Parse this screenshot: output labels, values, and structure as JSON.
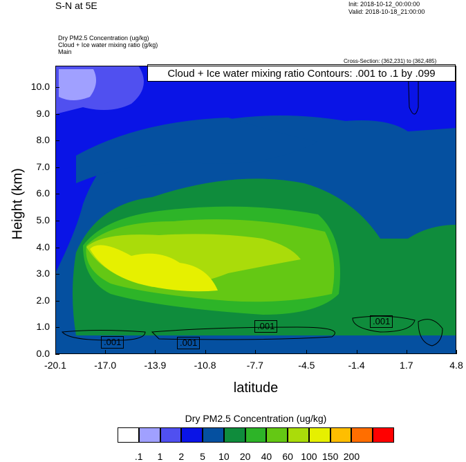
{
  "header": {
    "title": "S-N at 5E",
    "init": "Init: 2018-10-12_00:00:00",
    "valid": "Valid: 2018-10-18_21:00:00",
    "subtitle1": "Dry PM2.5 Concentration   (ug/kg)",
    "subtitle2": "Cloud + Ice water mixing ratio   (g/kg)",
    "subtitle3": "Main",
    "cross_section": "Cross-Section: (362,231) to (362,485)",
    "contour_info": "Cloud + Ice water mixing ratio Contours: .001 to .1 by .099"
  },
  "colors": {
    "levels": [
      "#ffffff",
      "#a0a0ff",
      "#5050f0",
      "#0a14e6",
      "#0550a0",
      "#0f8c3c",
      "#2db428",
      "#64c814",
      "#aadc0a",
      "#e6f000",
      "#ffbe00",
      "#ff6e00",
      "#ff0000"
    ]
  },
  "chart_data": {
    "type": "contour",
    "xlabel": "latitude",
    "ylabel": "Height (km)",
    "xticks": [
      "-20.1",
      "-17.0",
      "-13.9",
      "-10.8",
      "-7.7",
      "-4.5",
      "-1.4",
      "1.7",
      "4.8"
    ],
    "yticks": [
      "0.0",
      "1.0",
      "2.0",
      "3.0",
      "4.0",
      "5.0",
      "6.0",
      "7.0",
      "8.0",
      "9.0",
      "10.0"
    ],
    "xlim": [
      -20.1,
      4.8
    ],
    "ylim": [
      0,
      10.8
    ],
    "contour_labels": [
      ".001",
      ".001",
      ".001",
      ".001"
    ],
    "colorbar": {
      "title": "Dry PM2.5 Concentration  (ug/kg)",
      "labels": [
        ".1",
        "1",
        "2",
        "5",
        "10",
        "20",
        "40",
        "60",
        "100",
        "150",
        "200"
      ]
    }
  }
}
